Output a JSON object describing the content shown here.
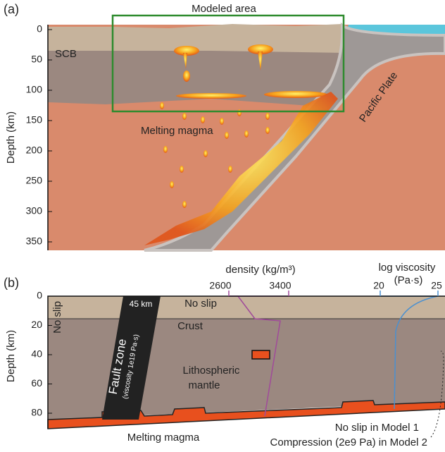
{
  "panel_a": {
    "label": "(a)",
    "box_label": "Modeled area",
    "y_axis_label": "Depth (km)",
    "yticks": [
      0,
      50,
      100,
      150,
      200,
      250,
      300,
      350
    ],
    "scb": "SCB",
    "magma": "Melting magma",
    "plate": "Pacific Plate"
  },
  "panel_b": {
    "label": "(b)",
    "y_axis_label": "Depth (km)",
    "yticks": [
      0,
      20,
      40,
      60,
      80
    ],
    "density_label": "density (kg/m³)",
    "density_ticks": [
      2600,
      3400
    ],
    "viscosity_label": "log viscosity",
    "viscosity_unit": "(Pa·s)",
    "viscosity_ticks": [
      20,
      25
    ],
    "fault_depth": "45 km",
    "fault_name": "Fault zone",
    "fault_viscosity": "(viscosity 1e19 Pa·s)",
    "top_bc": "No slip",
    "left_bc": "No slip",
    "crust": "Crust",
    "mantle_1": "Lithospheric",
    "mantle_2": "mantle",
    "magma": "Melting magma",
    "right_bc_1": "No slip in Model 1",
    "right_bc_2": "Compression (2e9 Pa) in Model 2"
  }
}
